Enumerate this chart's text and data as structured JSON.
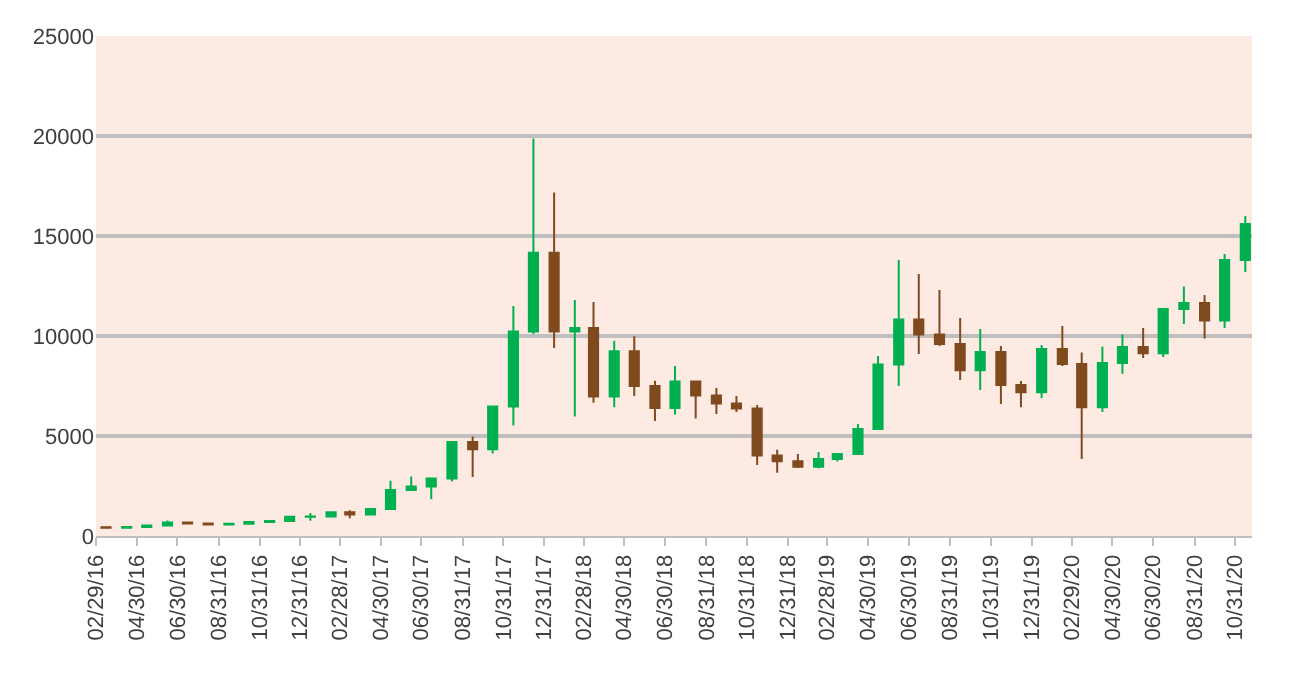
{
  "chart_data": {
    "type": "candlestick",
    "x": [
      "2016-03-15",
      "2016-04-15",
      "2016-05-15",
      "2016-06-15",
      "2016-07-15",
      "2016-08-15",
      "2016-09-15",
      "2016-10-15",
      "2016-11-15",
      "2016-12-15",
      "2017-01-15",
      "2017-02-15",
      "2017-03-15",
      "2017-04-15",
      "2017-05-15",
      "2017-06-15",
      "2017-07-15",
      "2017-08-15",
      "2017-09-15",
      "2017-10-15",
      "2017-11-15",
      "2017-12-15",
      "2018-01-15",
      "2018-02-15",
      "2018-03-15",
      "2018-04-15",
      "2018-05-15",
      "2018-06-15",
      "2018-07-15",
      "2018-08-15",
      "2018-09-15",
      "2018-10-15",
      "2018-11-15",
      "2018-12-15",
      "2019-01-15",
      "2019-02-15",
      "2019-03-15",
      "2019-04-15",
      "2019-05-15",
      "2019-06-15",
      "2019-07-15",
      "2019-08-15",
      "2019-09-15",
      "2019-10-15",
      "2019-11-15",
      "2019-12-15",
      "2020-01-15",
      "2020-02-15",
      "2020-03-15",
      "2020-04-15",
      "2020-05-15",
      "2020-06-15",
      "2020-07-15",
      "2020-08-15",
      "2020-09-15",
      "2020-10-15",
      "2020-11-15"
    ],
    "ohlc": [
      [
        437,
        439,
        410,
        416
      ],
      [
        416,
        467,
        415,
        448
      ],
      [
        448,
        550,
        440,
        531
      ],
      [
        531,
        780,
        530,
        673
      ],
      [
        673,
        700,
        600,
        624
      ],
      [
        624,
        626,
        530,
        575
      ],
      [
        575,
        628,
        570,
        609
      ],
      [
        609,
        720,
        605,
        700
      ],
      [
        700,
        755,
        690,
        745
      ],
      [
        745,
        980,
        740,
        964
      ],
      [
        964,
        1150,
        760,
        970
      ],
      [
        970,
        1200,
        940,
        1190
      ],
      [
        1190,
        1290,
        890,
        1080
      ],
      [
        1080,
        1350,
        1070,
        1350
      ],
      [
        1350,
        2760,
        1340,
        2300
      ],
      [
        2300,
        2980,
        2300,
        2480
      ],
      [
        2480,
        2920,
        1840,
        2870
      ],
      [
        2870,
        4740,
        2720,
        4700
      ],
      [
        4700,
        4980,
        2950,
        4340
      ],
      [
        4340,
        6470,
        4130,
        6470
      ],
      [
        6470,
        11500,
        5520,
        10230
      ],
      [
        10230,
        19870,
        10100,
        14160
      ],
      [
        14160,
        17180,
        9400,
        10220
      ],
      [
        10220,
        11800,
        5970,
        10400
      ],
      [
        10400,
        11700,
        6660,
        6970
      ],
      [
        6970,
        9760,
        6440,
        9240
      ],
      [
        9240,
        9990,
        7000,
        7500
      ],
      [
        7500,
        7760,
        5750,
        6400
      ],
      [
        6400,
        8500,
        6070,
        7730
      ],
      [
        7730,
        7760,
        5880,
        7030
      ],
      [
        7030,
        7400,
        6100,
        6630
      ],
      [
        6630,
        7000,
        6200,
        6370
      ],
      [
        6370,
        6550,
        3550,
        4020
      ],
      [
        4020,
        4310,
        3160,
        3740
      ],
      [
        3740,
        4100,
        3400,
        3460
      ],
      [
        3460,
        4200,
        3390,
        3850
      ],
      [
        3850,
        4110,
        3730,
        4100
      ],
      [
        4100,
        5600,
        4090,
        5350
      ],
      [
        5350,
        9000,
        5340,
        8570
      ],
      [
        8570,
        13800,
        7500,
        10820
      ],
      [
        10820,
        13100,
        9100,
        10080
      ],
      [
        10080,
        12300,
        9500,
        9600
      ],
      [
        9600,
        10900,
        7800,
        8290
      ],
      [
        8290,
        10350,
        7300,
        9200
      ],
      [
        9200,
        9500,
        6600,
        7550
      ],
      [
        7550,
        7750,
        6440,
        7190
      ],
      [
        7190,
        9550,
        6900,
        9350
      ],
      [
        9350,
        10500,
        8500,
        8600
      ],
      [
        8600,
        9170,
        3850,
        6440
      ],
      [
        6440,
        9460,
        6200,
        8650
      ],
      [
        8650,
        10080,
        8110,
        9450
      ],
      [
        9450,
        10400,
        8900,
        9140
      ],
      [
        9140,
        11400,
        8950,
        11350
      ],
      [
        11350,
        12470,
        10600,
        11650
      ],
      [
        11650,
        12050,
        9880,
        10780
      ],
      [
        10780,
        14100,
        10400,
        13800
      ],
      [
        13800,
        16000,
        13200,
        15600
      ]
    ],
    "colors": [
      "#7f4a1e",
      "#00b050",
      "#00b050",
      "#00b050",
      "#7f4a1e",
      "#7f4a1e",
      "#00b050",
      "#00b050",
      "#00b050",
      "#00b050",
      "#00b050",
      "#00b050",
      "#7f4a1e",
      "#00b050",
      "#00b050",
      "#00b050",
      "#00b050",
      "#00b050",
      "#7f4a1e",
      "#00b050",
      "#00b050",
      "#00b050",
      "#7f4a1e",
      "#00b050",
      "#7f4a1e",
      "#00b050",
      "#7f4a1e",
      "#7f4a1e",
      "#00b050",
      "#7f4a1e",
      "#7f4a1e",
      "#7f4a1e",
      "#7f4a1e",
      "#7f4a1e",
      "#7f4a1e",
      "#00b050",
      "#00b050",
      "#00b050",
      "#00b050",
      "#00b050",
      "#7f4a1e",
      "#7f4a1e",
      "#7f4a1e",
      "#00b050",
      "#7f4a1e",
      "#7f4a1e",
      "#00b050",
      "#7f4a1e",
      "#7f4a1e",
      "#00b050",
      "#00b050",
      "#7f4a1e",
      "#00b050",
      "#00b050",
      "#7f4a1e",
      "#00b050",
      "#00b050"
    ],
    "xlim": [
      "2016-02-29",
      "2020-11-25"
    ],
    "xticks": [
      {
        "value": "2016-02-29",
        "label": "02/29/16"
      },
      {
        "value": "2016-04-30",
        "label": "04/30/16"
      },
      {
        "value": "2016-06-30",
        "label": "06/30/16"
      },
      {
        "value": "2016-08-31",
        "label": "08/31/16"
      },
      {
        "value": "2016-10-31",
        "label": "10/31/16"
      },
      {
        "value": "2016-12-31",
        "label": "12/31/16"
      },
      {
        "value": "2017-02-28",
        "label": "02/28/17"
      },
      {
        "value": "2017-04-30",
        "label": "04/30/17"
      },
      {
        "value": "2017-06-30",
        "label": "06/30/17"
      },
      {
        "value": "2017-08-31",
        "label": "08/31/17"
      },
      {
        "value": "2017-10-31",
        "label": "10/31/17"
      },
      {
        "value": "2017-12-31",
        "label": "12/31/17"
      },
      {
        "value": "2018-02-28",
        "label": "02/28/18"
      },
      {
        "value": "2018-04-30",
        "label": "04/30/18"
      },
      {
        "value": "2018-06-30",
        "label": "06/30/18"
      },
      {
        "value": "2018-08-31",
        "label": "08/31/18"
      },
      {
        "value": "2018-10-31",
        "label": "10/31/18"
      },
      {
        "value": "2018-12-31",
        "label": "12/31/18"
      },
      {
        "value": "2019-02-28",
        "label": "02/28/19"
      },
      {
        "value": "2019-04-30",
        "label": "04/30/19"
      },
      {
        "value": "2019-06-30",
        "label": "06/30/19"
      },
      {
        "value": "2019-08-31",
        "label": "08/31/19"
      },
      {
        "value": "2019-10-31",
        "label": "10/31/19"
      },
      {
        "value": "2019-12-31",
        "label": "12/31/19"
      },
      {
        "value": "2020-02-29",
        "label": "02/29/20"
      },
      {
        "value": "2020-04-30",
        "label": "04/30/20"
      },
      {
        "value": "2020-06-30",
        "label": "06/30/20"
      },
      {
        "value": "2020-08-31",
        "label": "08/31/20"
      },
      {
        "value": "2020-10-31",
        "label": "10/31/20"
      }
    ],
    "ylim": [
      0,
      25000
    ],
    "yticks": [
      0,
      5000,
      10000,
      15000,
      20000,
      25000
    ],
    "grid": "y"
  }
}
